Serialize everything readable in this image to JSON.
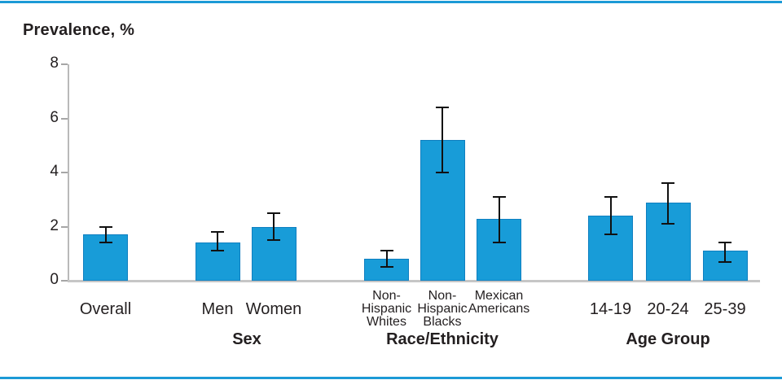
{
  "accent_rule_color": "#1b9ad6",
  "chart_data": {
    "type": "bar",
    "title": "Prevalence, %",
    "xlabel": "",
    "ylabel": "Prevalence, %",
    "ylim": [
      0,
      8
    ],
    "yticks": [
      0,
      2,
      4,
      6,
      8
    ],
    "grid": false,
    "legend": "none",
    "error_bars": "95% confidence intervals shown as black whiskers with caps",
    "colors": {
      "bar_fill": "#189CD8",
      "bar_border": "#0f7fc0",
      "error_bar": "#111111",
      "axis": "#b9b9b9",
      "text": "#231F20"
    },
    "groups": [
      {
        "label": "",
        "bars": [
          {
            "label_lines": [
              "Overall"
            ],
            "value": 1.7,
            "ci_low": 1.4,
            "ci_high": 2.0
          }
        ]
      },
      {
        "label": "Sex",
        "bars": [
          {
            "label_lines": [
              "Men"
            ],
            "value": 1.4,
            "ci_low": 1.1,
            "ci_high": 1.8
          },
          {
            "label_lines": [
              "Women"
            ],
            "value": 2.0,
            "ci_low": 1.5,
            "ci_high": 2.5
          }
        ]
      },
      {
        "label": "Race/Ethnicity",
        "bars": [
          {
            "label_lines": [
              "Non-",
              "Hispanic",
              "Whites"
            ],
            "value": 0.8,
            "ci_low": 0.5,
            "ci_high": 1.1
          },
          {
            "label_lines": [
              "Non-",
              "Hispanic",
              "Blacks"
            ],
            "value": 5.2,
            "ci_low": 4.0,
            "ci_high": 6.4
          },
          {
            "label_lines": [
              "Mexican",
              "Americans"
            ],
            "value": 2.3,
            "ci_low": 1.4,
            "ci_high": 3.1
          }
        ]
      },
      {
        "label": "Age Group",
        "bars": [
          {
            "label_lines": [
              "14-19"
            ],
            "value": 2.4,
            "ci_low": 1.7,
            "ci_high": 3.1
          },
          {
            "label_lines": [
              "20-24"
            ],
            "value": 2.9,
            "ci_low": 2.1,
            "ci_high": 3.6
          },
          {
            "label_lines": [
              "25-39"
            ],
            "value": 1.1,
            "ci_low": 0.7,
            "ci_high": 1.4
          }
        ]
      }
    ]
  }
}
